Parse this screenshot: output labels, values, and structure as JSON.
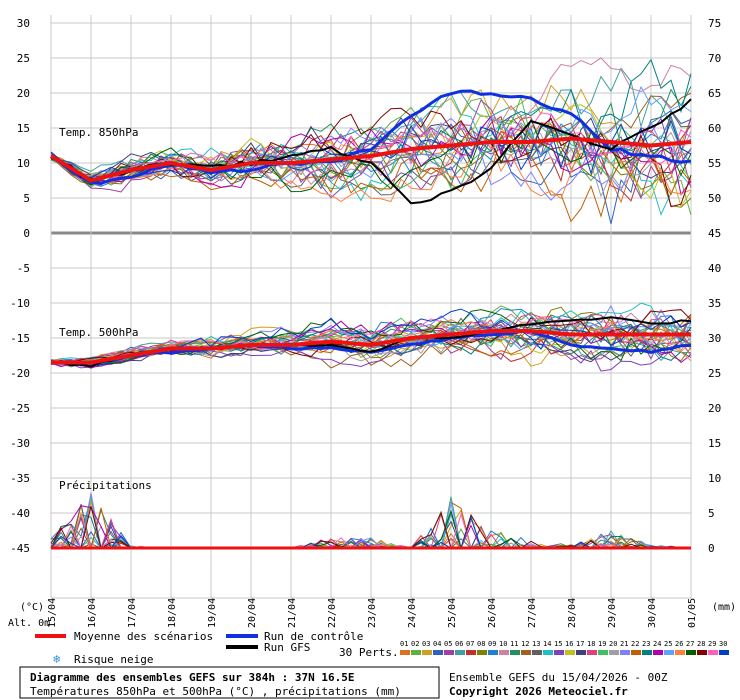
{
  "chart_data": {
    "type": "line",
    "x_dates": [
      "15/04",
      "16/04",
      "17/04",
      "18/04",
      "19/04",
      "20/04",
      "21/04",
      "22/04",
      "23/04",
      "24/04",
      "25/04",
      "26/04",
      "27/04",
      "28/04",
      "29/04",
      "30/04",
      "01/05"
    ],
    "y_left_ticks": [
      30,
      25,
      20,
      15,
      10,
      5,
      0,
      -5,
      -10,
      -15,
      -20,
      -25,
      -30,
      -35,
      -40,
      -45
    ],
    "y_right_ticks": [
      75,
      70,
      65,
      60,
      55,
      50,
      45,
      40,
      35,
      30,
      25,
      20,
      15,
      10,
      5,
      0
    ],
    "ylabel_left": "(°C)",
    "ylabel_left2": "Alt. 0m",
    "ylabel_right": "(mm)",
    "panel_labels": {
      "t850": "Temp. 850hPa",
      "t500": "Temp. 500hPa",
      "precip": "Précipitations"
    },
    "legend": {
      "mean": "Moyenne des scénarios",
      "control": "Run de contrôle",
      "gfs": "Run GFS",
      "snow": "Risque neige",
      "perts": "30 Perts."
    },
    "pert_numbers": [
      "01",
      "02",
      "03",
      "04",
      "05",
      "06",
      "07",
      "08",
      "09",
      "10",
      "11",
      "12",
      "13",
      "14",
      "15",
      "16",
      "17",
      "18",
      "19",
      "20",
      "21",
      "22",
      "23",
      "24",
      "25",
      "26",
      "27",
      "28",
      "29",
      "30"
    ],
    "pert_colors": [
      "#e07020",
      "#60b040",
      "#d0a020",
      "#3060c0",
      "#a040a0",
      "#40a0a0",
      "#c03030",
      "#808000",
      "#2080d0",
      "#d080a0",
      "#209060",
      "#a06020",
      "#606060",
      "#20c0c0",
      "#8040c0",
      "#c0c020",
      "#404080",
      "#e04080",
      "#40c060",
      "#a0a0a0",
      "#8080ff",
      "#c06000",
      "#008080",
      "#b000b0",
      "#60a0ff",
      "#ff8040",
      "#006000",
      "#800000",
      "#ff60c0",
      "#0040c0"
    ],
    "colors": {
      "mean": "#ee1111",
      "control": "#1030e0",
      "gfs": "#000000"
    },
    "series_summary": {
      "mean_850": [
        11,
        7.5,
        9,
        10,
        9,
        10,
        10,
        10.5,
        11,
        12,
        12.5,
        13,
        13,
        13.5,
        13,
        12.5,
        13
      ],
      "control_850": [
        11,
        7,
        8,
        10,
        8.5,
        9,
        10,
        10,
        12,
        17,
        20,
        20,
        19,
        17,
        12,
        11,
        10
      ],
      "gfs_850": [
        11,
        7.5,
        9,
        10,
        9.5,
        10,
        11,
        12,
        10,
        4,
        6,
        9,
        16,
        14,
        12,
        15,
        19
      ],
      "mean_500": [
        -18.5,
        -18.5,
        -17.5,
        -16.5,
        -16.5,
        -16,
        -16,
        -15.5,
        -16,
        -15,
        -14.5,
        -14,
        -14,
        -14.5,
        -14.5,
        -14.5,
        -14.5
      ],
      "control_500": [
        -18.5,
        -18.5,
        -17.5,
        -17,
        -16.5,
        -16,
        -16.5,
        -16.5,
        -17,
        -16,
        -15,
        -14.5,
        -14,
        -16,
        -16.5,
        -17,
        -16
      ],
      "gfs_500": [
        -18.5,
        -19,
        -17.5,
        -16.5,
        -16.5,
        -16,
        -16,
        -16,
        -17,
        -15,
        -15,
        -14,
        -13,
        -12.5,
        -12,
        -13,
        -12.5
      ],
      "precip_peak_mm": [
        1.5,
        8,
        0.3,
        0,
        0,
        0,
        0,
        1.5,
        1.5,
        0,
        7.5,
        3,
        1,
        0.5,
        2.5,
        0.5,
        0
      ]
    },
    "grid": true
  },
  "footer": {
    "title_line1": "Diagramme des ensembles GEFS sur 384h : 37N 16.5E",
    "title_line2": "Températures 850hPa et 500hPa (°C) , précipitations (mm)",
    "run_info": "Ensemble GEFS du 15/04/2026 - 00Z",
    "copyright": "Copyright 2026 Meteociel.fr"
  }
}
